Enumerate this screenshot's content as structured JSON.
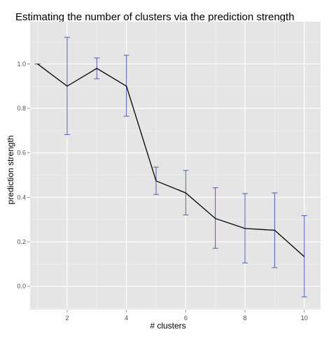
{
  "chart_data": {
    "type": "line",
    "title": "Estimating the number of clusters via the prediction strength",
    "xlabel": "# clusters",
    "ylabel": "prediction strength",
    "xlim": [
      0.75,
      10.55
    ],
    "ylim": [
      -0.105,
      1.19
    ],
    "x_ticks": [
      2,
      4,
      6,
      8,
      10
    ],
    "x_tick_labels": [
      "2",
      "4",
      "6",
      "8",
      "10"
    ],
    "y_ticks": [
      0.0,
      0.2,
      0.4,
      0.6,
      0.8,
      1.0
    ],
    "y_tick_labels": [
      "0.0",
      "0.2",
      "0.4",
      "0.6",
      "0.8",
      "1.0"
    ],
    "grid": true,
    "legend": "none",
    "colors": {
      "panel_background": "#e5e5e5",
      "grid_major": "#ffffff",
      "grid_minor": "#f2f2f2",
      "line": "#000000",
      "error_bars": "#3f4fa8"
    },
    "series": [
      {
        "x": [
          1,
          2,
          3,
          4,
          5,
          6,
          7,
          8,
          9,
          10
        ],
        "y": [
          1.0,
          0.9,
          0.98,
          0.9,
          0.474,
          0.42,
          0.305,
          0.26,
          0.252,
          0.133
        ],
        "lower": [
          1.0,
          0.682,
          0.933,
          0.765,
          0.413,
          0.321,
          0.171,
          0.105,
          0.084,
          -0.048
        ],
        "upper": [
          1.0,
          1.12,
          1.027,
          1.039,
          0.536,
          0.521,
          0.443,
          0.417,
          0.42,
          0.318
        ]
      }
    ]
  }
}
